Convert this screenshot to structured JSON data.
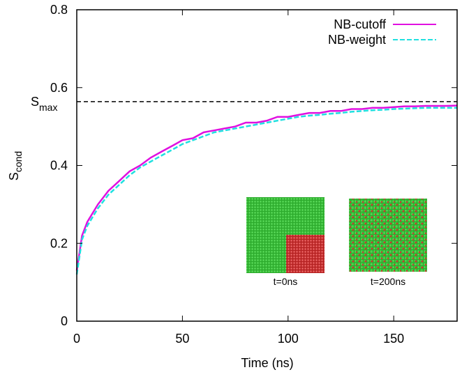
{
  "chart_data": {
    "type": "line",
    "xlabel": "Time (ns)",
    "ylabel": "S",
    "ylabel_sub": "cond",
    "xlim": [
      0,
      180
    ],
    "ylim": [
      0,
      0.8
    ],
    "xticks": [
      0,
      50,
      100,
      150
    ],
    "yticks": [
      0,
      0.2,
      0.4,
      0.6,
      0.8
    ],
    "legend": "upper right",
    "x": [
      0,
      2.5,
      5,
      10,
      15,
      20,
      25,
      30,
      35,
      40,
      45,
      50,
      55,
      60,
      65,
      70,
      75,
      80,
      85,
      90,
      95,
      100,
      105,
      110,
      115,
      120,
      125,
      130,
      135,
      140,
      145,
      150,
      155,
      160,
      165,
      170,
      175,
      180
    ],
    "series": [
      {
        "name": "NB-cutoff",
        "color": "#e010e0",
        "dash": false,
        "values": [
          0.13,
          0.22,
          0.255,
          0.3,
          0.335,
          0.36,
          0.385,
          0.4,
          0.42,
          0.435,
          0.45,
          0.465,
          0.47,
          0.485,
          0.49,
          0.495,
          0.5,
          0.51,
          0.51,
          0.515,
          0.525,
          0.525,
          0.53,
          0.535,
          0.535,
          0.54,
          0.54,
          0.545,
          0.545,
          0.548,
          0.548,
          0.55,
          0.552,
          0.552,
          0.553,
          0.553,
          0.553,
          0.554
        ]
      },
      {
        "name": "NB-weight",
        "color": "#20e0e0",
        "dash": true,
        "values": [
          0.12,
          0.21,
          0.245,
          0.29,
          0.325,
          0.35,
          0.375,
          0.395,
          0.41,
          0.425,
          0.44,
          0.455,
          0.465,
          0.475,
          0.485,
          0.49,
          0.495,
          0.5,
          0.505,
          0.51,
          0.515,
          0.52,
          0.525,
          0.528,
          0.53,
          0.533,
          0.535,
          0.538,
          0.54,
          0.542,
          0.543,
          0.545,
          0.546,
          0.547,
          0.548,
          0.548,
          0.548,
          0.548
        ]
      }
    ],
    "hline": {
      "value": 0.564,
      "label": "S",
      "label_sub": "max"
    },
    "insets": [
      "t=0ns",
      "t=200ns"
    ]
  }
}
